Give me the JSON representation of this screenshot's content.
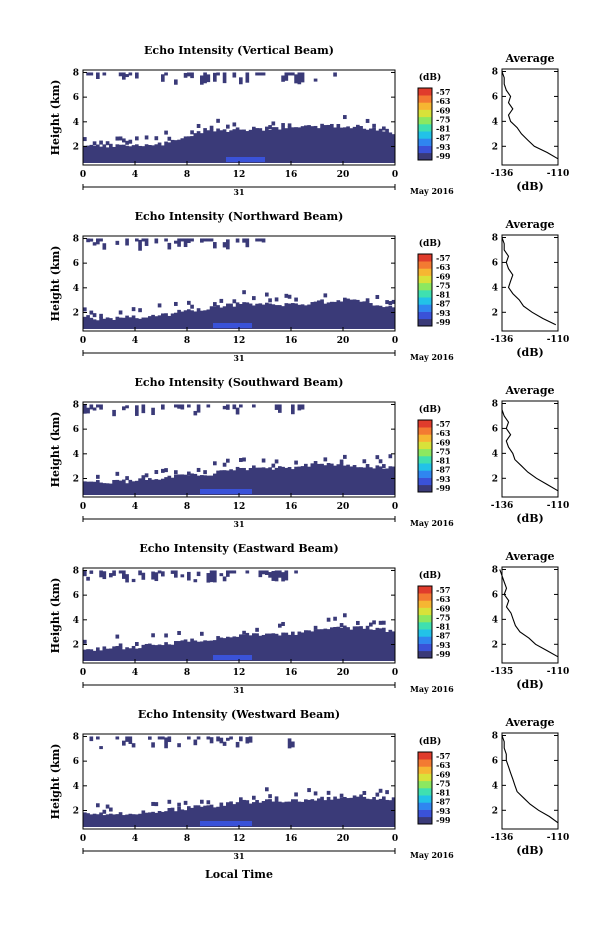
{
  "xlabel": "Local Time",
  "x_ticks": [
    "0",
    "4",
    "8",
    "12",
    "16",
    "20",
    "0"
  ],
  "day_label": "31",
  "month_label": "May 2016",
  "ylabel": "Height (km)",
  "y_ticks": [
    "2",
    "4",
    "6",
    "8"
  ],
  "colorbar": {
    "unit": "(dB)",
    "ticks": [
      "-57",
      "-63",
      "-69",
      "-75",
      "-81",
      "-87",
      "-93",
      "-99"
    ],
    "colors": [
      "#3a3a78",
      "#3a52d8",
      "#2f86f0",
      "#22c2e8",
      "#3fe0b0",
      "#8ce860",
      "#d8e23a",
      "#f6b632",
      "#f37a32",
      "#e03c2c"
    ]
  },
  "average": {
    "title": "Average",
    "xlabel": "(dB)",
    "y_ticks": [
      "2",
      "4",
      "6",
      "8"
    ]
  },
  "chart_data": [
    {
      "type": "heatmap",
      "title": "Echo Intensity (Vertical Beam)",
      "xlabel": "Local Time",
      "ylabel": "Height (km)",
      "xlim": [
        0,
        24
      ],
      "ylim": [
        0.5,
        8.2
      ],
      "clim": [
        -99,
        -57
      ],
      "fill_color": "#3a3a78",
      "layer_top_km": [
        [
          0,
          2.0
        ],
        [
          4,
          2.1
        ],
        [
          6,
          2.2
        ],
        [
          8,
          2.7
        ],
        [
          9,
          3.2
        ],
        [
          12,
          3.4
        ],
        [
          16,
          3.5
        ],
        [
          20,
          3.7
        ],
        [
          22,
          3.5
        ],
        [
          23,
          3.4
        ],
        [
          24,
          3.1
        ]
      ],
      "upper_cloud_km": [
        7.0,
        8.0
      ],
      "upper_cloud_until_h": 19.5,
      "blue_patch_h": [
        11,
        14
      ],
      "average_profile": {
        "xlim": [
          -136,
          -110
        ],
        "x_ticks": [
          "-136",
          "-110"
        ],
        "ylim": [
          0.5,
          8.2
        ],
        "heights_km": [
          1.0,
          1.5,
          2.0,
          2.5,
          3.0,
          3.5,
          4.0,
          4.5,
          5.0,
          5.5,
          6.0,
          6.5,
          7.0,
          7.5,
          8.0
        ],
        "values_db": [
          -110,
          -115,
          -121,
          -124,
          -127,
          -129,
          -132,
          -133,
          -131,
          -133,
          -132,
          -134,
          -135,
          -135,
          -136
        ]
      }
    },
    {
      "type": "heatmap",
      "title": "Echo Intensity (Northward Beam)",
      "xlabel": "Local Time",
      "ylabel": "Height (km)",
      "xlim": [
        0,
        24
      ],
      "ylim": [
        0.5,
        8.2
      ],
      "clim": [
        -99,
        -57
      ],
      "fill_color": "#3a3a78",
      "layer_top_km": [
        [
          0,
          1.5
        ],
        [
          4,
          1.6
        ],
        [
          6,
          1.8
        ],
        [
          8,
          2.1
        ],
        [
          10,
          2.4
        ],
        [
          12,
          2.7
        ],
        [
          16,
          2.6
        ],
        [
          20,
          3.0
        ],
        [
          22,
          2.8
        ],
        [
          24,
          2.4
        ]
      ],
      "upper_cloud_km": [
        7.0,
        8.0
      ],
      "upper_cloud_until_h": 14,
      "blue_patch_h": [
        10,
        13
      ],
      "average_profile": {
        "xlim": [
          -136,
          -110
        ],
        "x_ticks": [
          "-136",
          "-110"
        ],
        "ylim": [
          0.5,
          8.2
        ],
        "heights_km": [
          1.0,
          1.5,
          2.0,
          2.5,
          3.0,
          3.5,
          4.0,
          4.5,
          5.0,
          5.5,
          6.0,
          6.5,
          7.0,
          7.5,
          8.0
        ],
        "values_db": [
          -111,
          -117,
          -122,
          -126,
          -128,
          -131,
          -133,
          -132,
          -131,
          -133,
          -134,
          -133,
          -135,
          -135,
          -136
        ]
      }
    },
    {
      "type": "heatmap",
      "title": "Echo Intensity (Southward Beam)",
      "xlabel": "Local Time",
      "ylabel": "Height (km)",
      "xlim": [
        0,
        24
      ],
      "ylim": [
        0.5,
        8.2
      ],
      "clim": [
        -99,
        -57
      ],
      "fill_color": "#3a3a78",
      "layer_top_km": [
        [
          0,
          1.7
        ],
        [
          4,
          1.8
        ],
        [
          6,
          2.0
        ],
        [
          8,
          2.3
        ],
        [
          10,
          2.4
        ],
        [
          12,
          2.8
        ],
        [
          16,
          2.9
        ],
        [
          20,
          3.2
        ],
        [
          22,
          3.0
        ],
        [
          24,
          2.8
        ]
      ],
      "upper_cloud_km": [
        7.0,
        8.0
      ],
      "upper_cloud_until_h": 17,
      "blue_patch_h": [
        9,
        13
      ],
      "average_profile": {
        "xlim": [
          -136,
          -110
        ],
        "x_ticks": [
          "-136",
          "-110"
        ],
        "ylim": [
          0.5,
          8.2
        ],
        "heights_km": [
          1.0,
          1.5,
          2.0,
          2.5,
          3.0,
          3.5,
          4.0,
          4.5,
          5.0,
          5.5,
          6.0,
          6.5,
          7.0,
          7.5,
          8.0
        ],
        "values_db": [
          -110,
          -115,
          -120,
          -124,
          -127,
          -130,
          -131,
          -133,
          -134,
          -132,
          -134,
          -133,
          -135,
          -136,
          -136
        ]
      }
    },
    {
      "type": "heatmap",
      "title": "Echo Intensity (Eastward Beam)",
      "xlabel": "Local Time",
      "ylabel": "Height (km)",
      "xlim": [
        0,
        24
      ],
      "ylim": [
        0.5,
        8.2
      ],
      "clim": [
        -99,
        -57
      ],
      "fill_color": "#3a3a78",
      "layer_top_km": [
        [
          0,
          1.6
        ],
        [
          4,
          1.8
        ],
        [
          6,
          2.0
        ],
        [
          8,
          2.3
        ],
        [
          10,
          2.5
        ],
        [
          12,
          2.8
        ],
        [
          16,
          2.9
        ],
        [
          20,
          3.4
        ],
        [
          22,
          3.3
        ],
        [
          24,
          3.1
        ]
      ],
      "upper_cloud_km": [
        7.0,
        8.0
      ],
      "upper_cloud_until_h": 17,
      "blue_patch_h": [
        10,
        13
      ],
      "average_profile": {
        "xlim": [
          -135,
          -110
        ],
        "x_ticks": [
          "-135",
          "-110"
        ],
        "ylim": [
          0.5,
          8.2
        ],
        "heights_km": [
          1.0,
          1.5,
          2.0,
          2.5,
          3.0,
          3.5,
          4.0,
          4.5,
          5.0,
          5.5,
          6.0,
          6.5,
          7.0,
          7.5,
          8.0
        ],
        "values_db": [
          -110,
          -115,
          -120,
          -123,
          -127,
          -129,
          -130,
          -131,
          -133,
          -132,
          -134,
          -133,
          -134,
          -135,
          -136
        ]
      }
    },
    {
      "type": "heatmap",
      "title": "Echo Intensity (Westward Beam)",
      "xlabel": "Local Time",
      "ylabel": "Height (km)",
      "xlim": [
        0,
        24
      ],
      "ylim": [
        0.5,
        8.2
      ],
      "clim": [
        -99,
        -57
      ],
      "fill_color": "#3a3a78",
      "layer_top_km": [
        [
          0,
          1.7
        ],
        [
          4,
          1.8
        ],
        [
          6,
          2.0
        ],
        [
          8,
          2.2
        ],
        [
          10,
          2.4
        ],
        [
          12,
          2.7
        ],
        [
          16,
          2.8
        ],
        [
          20,
          3.1
        ],
        [
          22,
          3.1
        ],
        [
          24,
          2.9
        ]
      ],
      "upper_cloud_km": [
        7.0,
        8.0
      ],
      "upper_cloud_until_h": 17,
      "blue_patch_h": [
        9,
        13
      ],
      "average_profile": {
        "xlim": [
          -136,
          -110
        ],
        "x_ticks": [
          "-136",
          "-110"
        ],
        "ylim": [
          0.5,
          8.2
        ],
        "heights_km": [
          1.0,
          1.5,
          2.0,
          2.5,
          3.0,
          3.5,
          4.0,
          4.5,
          5.0,
          5.5,
          6.0,
          6.5,
          7.0,
          7.5,
          8.0
        ],
        "values_db": [
          -110,
          -114,
          -119,
          -123,
          -126,
          -129,
          -130,
          -131,
          -132,
          -133,
          -134,
          -134,
          -135,
          -135,
          -136
        ]
      }
    }
  ]
}
